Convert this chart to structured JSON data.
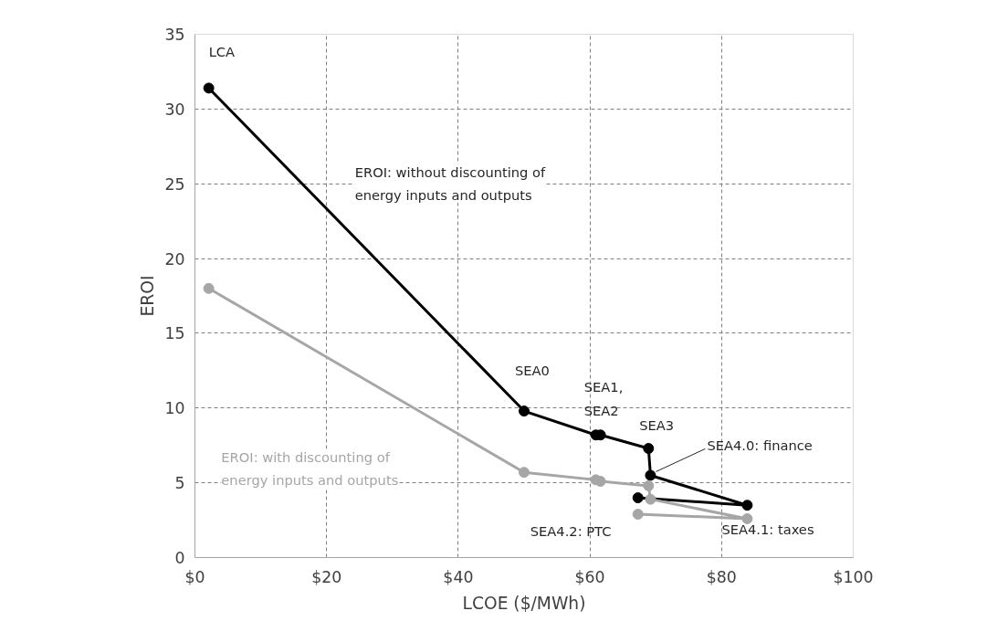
{
  "chart_data": {
    "type": "line",
    "xlabel": "LCOE ($/MWh)",
    "ylabel": "EROI",
    "xlim": [
      0,
      100
    ],
    "ylim": [
      0,
      35
    ],
    "xticks": [
      {
        "value": 0,
        "label": "$0"
      },
      {
        "value": 20,
        "label": "$20"
      },
      {
        "value": 40,
        "label": "$40"
      },
      {
        "value": 60,
        "label": "$60"
      },
      {
        "value": 80,
        "label": "$80"
      },
      {
        "value": 100,
        "label": "$100"
      }
    ],
    "yticks": [
      0,
      5,
      10,
      15,
      20,
      25,
      30,
      35
    ],
    "grid": true,
    "legend": false,
    "marker": "circle",
    "line_style": "solid",
    "series": [
      {
        "name": "EROI: without discounting of\nenergy inputs and outputs",
        "color": "#000000",
        "x": [
          2.1,
          50,
          60.9,
          61.6,
          68.9,
          69.2,
          83.9,
          67.3
        ],
        "values": [
          31.4,
          9.8,
          8.2,
          8.2,
          7.3,
          5.5,
          3.5,
          4.0
        ]
      },
      {
        "name": "EROI: with discounting of\nenergy inputs and outputs",
        "color": "#a6a6a6",
        "x": [
          2.1,
          50,
          60.9,
          61.6,
          68.9,
          69.2,
          83.9,
          67.3
        ],
        "values": [
          18.0,
          5.7,
          5.2,
          5.1,
          4.8,
          3.9,
          2.6,
          2.9
        ]
      }
    ],
    "annotations": [
      {
        "text": "LCA",
        "x": 2.1,
        "y": 31.4
      },
      {
        "text": "SEA0",
        "x": 50,
        "y": 9.8
      },
      {
        "text": "SEA1,\nSEA2",
        "x": 61.2,
        "y": 8.2
      },
      {
        "text": "SEA3",
        "x": 68.9,
        "y": 7.3
      },
      {
        "text": "SEA4.0: finance",
        "x": 69.2,
        "y": 5.5
      },
      {
        "text": "SEA4.1: taxes",
        "x": 83.9,
        "y": 2.6
      },
      {
        "text": "SEA4.2: PTC",
        "x": 67.3,
        "y": 2.9
      }
    ]
  }
}
